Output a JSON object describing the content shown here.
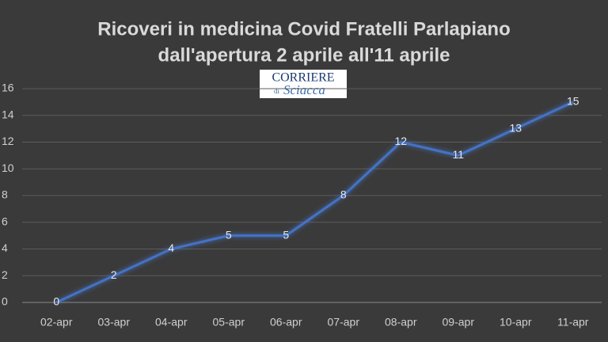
{
  "chart_data": {
    "type": "line",
    "title": [
      "Ricoveri in medicina Covid Fratelli Parlapiano",
      "dall'apertura 2 aprile all'11 aprile"
    ],
    "logo_text": [
      "CORRIERE",
      "di",
      "Sciacca"
    ],
    "categories": [
      "02-apr",
      "03-apr",
      "04-apr",
      "05-apr",
      "06-apr",
      "07-apr",
      "08-apr",
      "09-apr",
      "10-apr",
      "11-apr"
    ],
    "values": [
      0,
      2,
      4,
      5,
      5,
      8,
      12,
      11,
      13,
      15
    ],
    "color": "#4472c4",
    "ylim": [
      0,
      16
    ],
    "yticks": [
      0,
      2,
      4,
      6,
      8,
      10,
      12,
      14,
      16
    ],
    "grid": true
  }
}
